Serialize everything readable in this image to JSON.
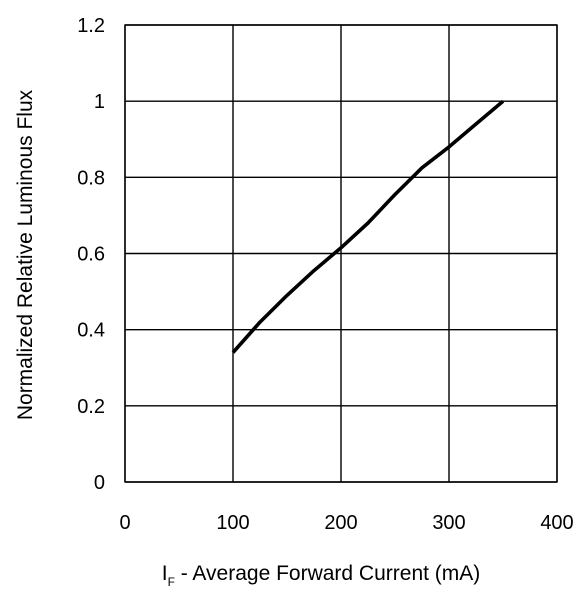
{
  "chart_data": {
    "type": "line",
    "title": "",
    "xlabel_prefix": "I",
    "xlabel_subscript": "F",
    "xlabel_rest": " - Average Forward Current (mA)",
    "ylabel": "Normalized Relative Luminous Flux",
    "xlim": [
      0,
      400
    ],
    "ylim": [
      0,
      1.2
    ],
    "x_ticks": [
      0,
      100,
      200,
      300,
      400
    ],
    "x_tick_labels": [
      "0",
      "100",
      "200",
      "300",
      "400"
    ],
    "y_ticks": [
      0,
      0.2,
      0.4,
      0.6,
      0.8,
      1,
      1.2
    ],
    "y_tick_labels": [
      "0",
      "0.2",
      "0.4",
      "0.6",
      "0.8",
      "1",
      "1.2"
    ],
    "grid": true,
    "series": [
      {
        "x": [
          100,
          125,
          150,
          175,
          200,
          225,
          250,
          275,
          300,
          325,
          350
        ],
        "y": [
          0.34,
          0.42,
          0.49,
          0.555,
          0.615,
          0.68,
          0.755,
          0.825,
          0.88,
          0.94,
          1.0
        ],
        "color": "#000000"
      }
    ]
  }
}
